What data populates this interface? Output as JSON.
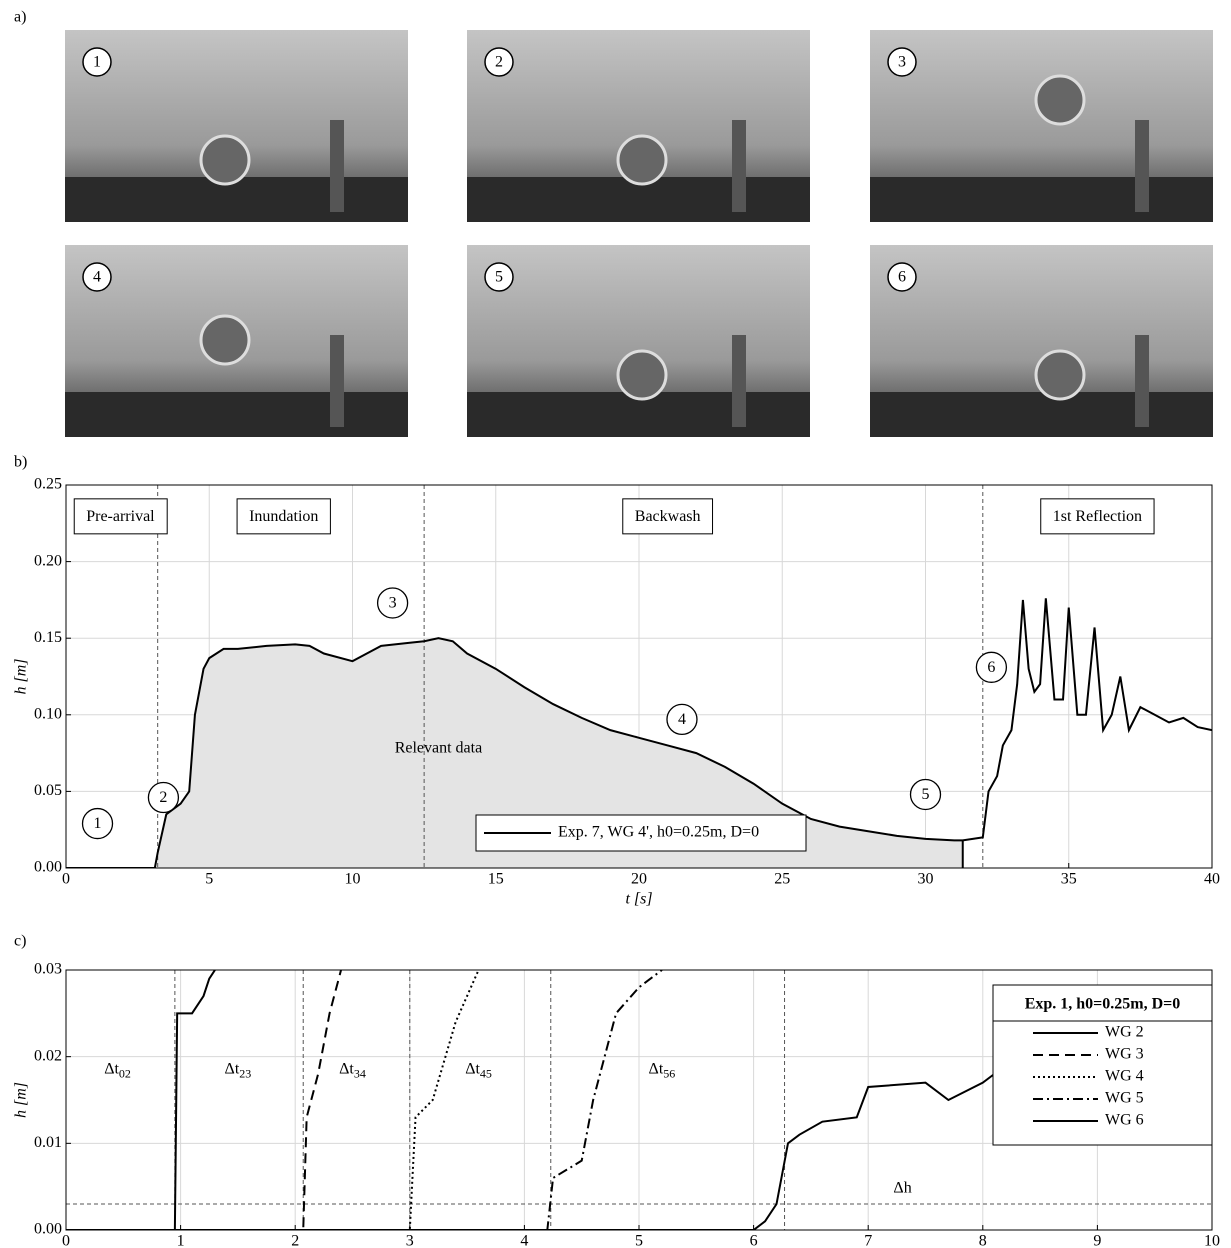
{
  "panel_labels": [
    "a)",
    "b)",
    "c)"
  ],
  "photos": {
    "labels": [
      "1",
      "2",
      "3",
      "4",
      "5",
      "6"
    ]
  },
  "chart_data": [
    {
      "type": "line",
      "xlabel": "t [s]",
      "ylabel": "h [m]",
      "xlim": [
        0,
        40
      ],
      "ylim": [
        0,
        0.25
      ],
      "xticks": [
        0,
        5,
        10,
        15,
        20,
        25,
        30,
        35,
        40
      ],
      "yticks": [
        {
          "value": 0,
          "label": "0.00"
        },
        0.05,
        {
          "value": 0.1,
          "label": "0.10"
        },
        0.15,
        {
          "value": 0.2,
          "label": "0.20"
        },
        0.25
      ],
      "grid": true,
      "legend": "lower center",
      "vlines": [
        3.2,
        12.5,
        32
      ],
      "shaded_range": [
        3.1,
        31.3
      ],
      "annotations": [
        {
          "text": "Pre-arrival",
          "x": 1.9,
          "y": 0.229,
          "style": "box"
        },
        {
          "text": "Inundation",
          "x": 7.6,
          "y": 0.229,
          "style": "box"
        },
        {
          "text": "Backwash",
          "x": 21,
          "y": 0.229,
          "style": "box"
        },
        {
          "text": "1st Reflection",
          "x": 36,
          "y": 0.229,
          "style": "box"
        },
        {
          "text": "Relevant data",
          "x": 13,
          "y": 0.078,
          "style": "plain"
        },
        {
          "text": "1",
          "x": 1.1,
          "y": 0.029,
          "style": "circle"
        },
        {
          "text": "2",
          "x": 3.4,
          "y": 0.046,
          "style": "circle"
        },
        {
          "text": "3",
          "x": 11.4,
          "y": 0.173,
          "style": "circle"
        },
        {
          "text": "4",
          "x": 21.5,
          "y": 0.097,
          "style": "circle"
        },
        {
          "text": "5",
          "x": 30.0,
          "y": 0.048,
          "style": "circle"
        },
        {
          "text": "6",
          "x": 32.3,
          "y": 0.131,
          "style": "circle"
        }
      ],
      "series": [
        {
          "name": "Exp. 7, WG 4', h0=0.25m, D=0",
          "color": "#000000",
          "dash": "solid",
          "x": [
            0,
            3,
            3.1,
            3.2,
            3.5,
            4,
            4.3,
            4.5,
            4.8,
            5,
            5.5,
            6,
            7,
            8,
            8.5,
            9,
            10,
            10.5,
            11,
            12,
            12.5,
            13,
            13.5,
            14,
            15,
            16,
            17,
            18,
            19,
            20,
            21,
            22,
            23,
            24,
            25,
            26,
            27,
            28,
            29,
            30,
            31,
            31.3,
            32,
            32.2,
            32.5,
            32.7,
            33,
            33.2,
            33.4,
            33.6,
            33.8,
            34,
            34.2,
            34.5,
            34.8,
            35,
            35.3,
            35.6,
            35.9,
            36.2,
            36.5,
            36.8,
            37.1,
            37.5,
            38,
            38.5,
            39,
            39.5,
            40
          ],
          "values": [
            0,
            0,
            0,
            0.01,
            0.035,
            0.042,
            0.05,
            0.1,
            0.13,
            0.137,
            0.143,
            0.143,
            0.145,
            0.146,
            0.145,
            0.14,
            0.135,
            0.14,
            0.145,
            0.147,
            0.148,
            0.15,
            0.148,
            0.14,
            0.13,
            0.118,
            0.107,
            0.098,
            0.09,
            0.085,
            0.08,
            0.075,
            0.066,
            0.055,
            0.042,
            0.032,
            0.027,
            0.024,
            0.021,
            0.019,
            0.018,
            0.018,
            0.02,
            0.05,
            0.06,
            0.08,
            0.09,
            0.12,
            0.175,
            0.13,
            0.115,
            0.12,
            0.176,
            0.11,
            0.11,
            0.17,
            0.1,
            0.1,
            0.157,
            0.09,
            0.1,
            0.125,
            0.09,
            0.105,
            0.1,
            0.095,
            0.098,
            0.092,
            0.09
          ]
        }
      ]
    },
    {
      "type": "line",
      "xlabel": "t [s]",
      "ylabel": "h [m]",
      "xlim": [
        0,
        10
      ],
      "ylim": [
        0,
        0.03
      ],
      "xticks": [
        0,
        1,
        2,
        3,
        4,
        5,
        6,
        7,
        8,
        9,
        10
      ],
      "yticks": [
        {
          "value": 0,
          "label": "0.00"
        },
        0.01,
        0.02,
        0.03
      ],
      "grid": true,
      "legend": "upper right",
      "legend_title": "Exp. 1, h0=0.25m, D=0",
      "vlines": [
        0.95,
        2.07,
        3.0,
        4.23,
        6.27
      ],
      "hlines": [
        0.003
      ],
      "annotations": [
        {
          "text": "Δt",
          "sub": "02",
          "x": 0.45,
          "y": 0.0185,
          "style": "plain"
        },
        {
          "text": "Δt",
          "sub": "23",
          "x": 1.5,
          "y": 0.0185,
          "style": "plain"
        },
        {
          "text": "Δt",
          "sub": "34",
          "x": 2.5,
          "y": 0.0185,
          "style": "plain"
        },
        {
          "text": "Δt",
          "sub": "45",
          "x": 3.6,
          "y": 0.0185,
          "style": "plain"
        },
        {
          "text": "Δt",
          "sub": "56",
          "x": 5.2,
          "y": 0.0185,
          "style": "plain"
        },
        {
          "text": "Δh",
          "x": 7.3,
          "y": 0.0048,
          "style": "plain"
        }
      ],
      "series": [
        {
          "name": "WG 2",
          "color": "#000000",
          "dash": "solid",
          "x": [
            0,
            0.95,
            0.97,
            1.0,
            1.1,
            1.2,
            1.25,
            1.3
          ],
          "values": [
            0,
            0,
            0.025,
            0.025,
            0.025,
            0.027,
            0.029,
            0.03
          ]
        },
        {
          "name": "WG 3",
          "color": "#000000",
          "dash": "dashed",
          "x": [
            0,
            2.07,
            2.1,
            2.2,
            2.3,
            2.4
          ],
          "values": [
            0,
            0,
            0.013,
            0.018,
            0.025,
            0.03
          ]
        },
        {
          "name": "WG 4",
          "color": "#000000",
          "dash": "dotted",
          "x": [
            0,
            3.0,
            3.05,
            3.2,
            3.4,
            3.6
          ],
          "values": [
            0,
            0,
            0.013,
            0.015,
            0.024,
            0.03
          ]
        },
        {
          "name": "WG 5",
          "color": "#000000",
          "dash": "dashdot",
          "x": [
            0,
            4.2,
            4.25,
            4.5,
            4.6,
            4.8,
            5,
            5.2
          ],
          "values": [
            0,
            0,
            0.006,
            0.008,
            0.015,
            0.025,
            0.028,
            0.03
          ]
        },
        {
          "name": "WG 6",
          "color": "#000000",
          "dash": "solid",
          "x": [
            0,
            6,
            6.1,
            6.2,
            6.3,
            6.4,
            6.6,
            6.9,
            7,
            7.5,
            7.7,
            8,
            8.1,
            9.9,
            10
          ],
          "values": [
            0,
            0,
            0.001,
            0.003,
            0.01,
            0.011,
            0.0125,
            0.013,
            0.0165,
            0.017,
            0.015,
            0.017,
            0.018,
            0.023,
            0.023
          ]
        }
      ]
    }
  ]
}
